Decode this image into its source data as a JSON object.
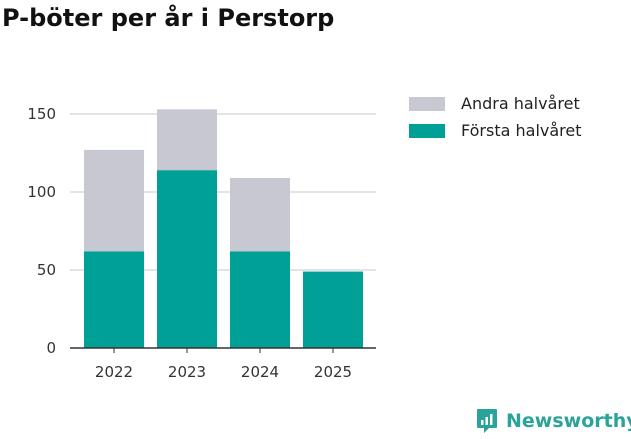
{
  "title": "P-böter per år i Perstorp",
  "chart_data": {
    "type": "bar",
    "stacked": true,
    "title": "P-böter per år i Perstorp",
    "categories": [
      "2022",
      "2023",
      "2024",
      "2025"
    ],
    "series": [
      {
        "name": "Första halvåret",
        "color": "#00a097",
        "values": [
          62,
          114,
          62,
          49
        ]
      },
      {
        "name": "Andra halvåret",
        "color": "#c8c8d2",
        "values": [
          65,
          39,
          47,
          0
        ]
      }
    ],
    "yticks": [
      0,
      50,
      100,
      150
    ],
    "ylim": [
      0,
      160
    ],
    "grid": true,
    "legend_placement": "right"
  },
  "legend": {
    "items": [
      {
        "label": "Andra halvåret",
        "color": "#c8c8d2"
      },
      {
        "label": "Första halvåret",
        "color": "#00a097"
      }
    ]
  },
  "brand": {
    "name": "Newsworthy",
    "color": "#2aa39a",
    "icon": "newsworthy-logo-icon"
  }
}
